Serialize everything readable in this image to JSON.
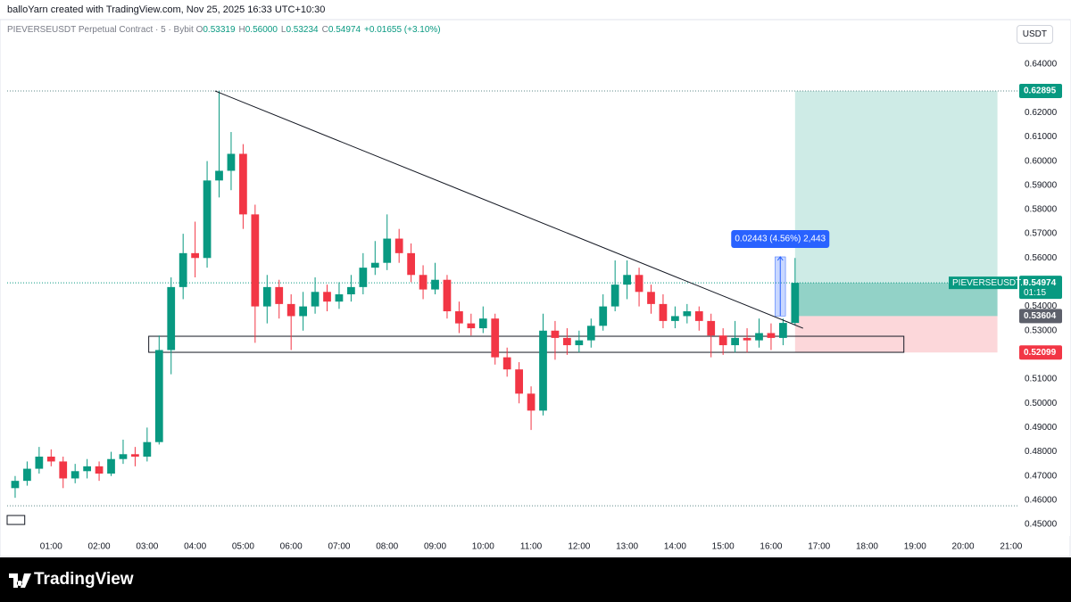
{
  "header": {
    "credit": "balloYarn created with TradingView.com, Nov 25, 2025 16:33 UTC+10:30",
    "symbol": "PIEVERSEUSDT Perpetual Contract · 5 · Bybit",
    "ohlc": [
      {
        "key": "O",
        "value": "0.53319"
      },
      {
        "key": "H",
        "value": "0.56000"
      },
      {
        "key": "L",
        "value": "0.53234"
      },
      {
        "key": "C",
        "value": "0.54974"
      }
    ],
    "change": "+0.01655 (+3.10%)",
    "currency": "USDT"
  },
  "footer": {
    "brand": "TradingView"
  },
  "chart_data": {
    "type": "candlestick",
    "up_color": "#089981",
    "down_color": "#f23645",
    "x": [
      "00:15",
      "00:30",
      "00:45",
      "01:00",
      "01:15",
      "01:30",
      "01:45",
      "02:00",
      "02:15",
      "02:30",
      "02:45",
      "03:00",
      "03:15",
      "03:30",
      "03:45",
      "04:00",
      "04:15",
      "04:30",
      "04:45",
      "05:00",
      "05:15",
      "05:30",
      "05:45",
      "06:00",
      "06:15",
      "06:30",
      "06:45",
      "07:00",
      "07:15",
      "07:30",
      "07:45",
      "08:00",
      "08:15",
      "08:30",
      "08:45",
      "09:00",
      "09:15",
      "09:30",
      "09:45",
      "10:00",
      "10:15",
      "10:30",
      "10:45",
      "11:00",
      "11:15",
      "11:30",
      "11:45",
      "12:00",
      "12:15",
      "12:30",
      "12:45",
      "13:00",
      "13:15",
      "13:30",
      "13:45",
      "14:00",
      "14:15",
      "14:30",
      "14:45",
      "15:00",
      "15:15",
      "15:30",
      "15:45",
      "16:00",
      "16:15",
      "16:30"
    ],
    "open": [
      0.465,
      0.468,
      0.473,
      0.478,
      0.476,
      0.469,
      0.472,
      0.474,
      0.471,
      0.477,
      0.479,
      0.478,
      0.484,
      0.522,
      0.548,
      0.562,
      0.56,
      0.592,
      0.596,
      0.603,
      0.578,
      0.54,
      0.548,
      0.541,
      0.536,
      0.54,
      0.546,
      0.542,
      0.545,
      0.548,
      0.556,
      0.558,
      0.568,
      0.562,
      0.553,
      0.547,
      0.551,
      0.538,
      0.533,
      0.531,
      0.535,
      0.519,
      0.514,
      0.504,
      0.497,
      0.53,
      0.527,
      0.524,
      0.526,
      0.532,
      0.54,
      0.549,
      0.553,
      0.546,
      0.541,
      0.534,
      0.536,
      0.538,
      0.534,
      0.528,
      0.524,
      0.527,
      0.526,
      0.529,
      0.527,
      0.53319
    ],
    "high": [
      0.47,
      0.476,
      0.482,
      0.481,
      0.478,
      0.475,
      0.477,
      0.476,
      0.48,
      0.485,
      0.482,
      0.49,
      0.528,
      0.552,
      0.57,
      0.575,
      0.6,
      0.62895,
      0.612,
      0.607,
      0.582,
      0.553,
      0.551,
      0.545,
      0.546,
      0.552,
      0.549,
      0.55,
      0.553,
      0.562,
      0.567,
      0.578,
      0.572,
      0.566,
      0.557,
      0.558,
      0.553,
      0.542,
      0.537,
      0.54,
      0.537,
      0.523,
      0.517,
      0.507,
      0.537,
      0.534,
      0.531,
      0.53,
      0.535,
      0.545,
      0.559,
      0.559,
      0.556,
      0.549,
      0.545,
      0.54,
      0.541,
      0.54,
      0.537,
      0.531,
      0.534,
      0.531,
      0.535,
      0.533,
      0.535,
      0.56
    ],
    "low": [
      0.461,
      0.466,
      0.471,
      0.474,
      0.465,
      0.467,
      0.469,
      0.468,
      0.47,
      0.475,
      0.474,
      0.476,
      0.483,
      0.512,
      0.543,
      0.552,
      0.556,
      0.585,
      0.588,
      0.572,
      0.525,
      0.533,
      0.535,
      0.522,
      0.53,
      0.537,
      0.538,
      0.539,
      0.542,
      0.545,
      0.553,
      0.555,
      0.558,
      0.55,
      0.543,
      0.545,
      0.535,
      0.529,
      0.528,
      0.529,
      0.516,
      0.511,
      0.5,
      0.489,
      0.495,
      0.518,
      0.52,
      0.521,
      0.523,
      0.53,
      0.538,
      0.543,
      0.54,
      0.537,
      0.531,
      0.531,
      0.533,
      0.53,
      0.519,
      0.52,
      0.521,
      0.521,
      0.523,
      0.522,
      0.524,
      0.53234
    ],
    "close": [
      0.468,
      0.473,
      0.478,
      0.476,
      0.469,
      0.472,
      0.474,
      0.471,
      0.477,
      0.479,
      0.478,
      0.484,
      0.522,
      0.548,
      0.562,
      0.56,
      0.592,
      0.596,
      0.603,
      0.578,
      0.54,
      0.548,
      0.541,
      0.536,
      0.54,
      0.546,
      0.542,
      0.545,
      0.548,
      0.556,
      0.558,
      0.568,
      0.562,
      0.553,
      0.547,
      0.551,
      0.538,
      0.533,
      0.531,
      0.535,
      0.519,
      0.514,
      0.504,
      0.497,
      0.53,
      0.527,
      0.524,
      0.526,
      0.532,
      0.54,
      0.549,
      0.553,
      0.546,
      0.541,
      0.534,
      0.536,
      0.538,
      0.534,
      0.528,
      0.524,
      0.527,
      0.526,
      0.529,
      0.527,
      0.53319,
      0.54974
    ],
    "xlim": [
      "00:05",
      "21:08"
    ],
    "xticks": [
      "01:00",
      "02:00",
      "03:00",
      "04:00",
      "05:00",
      "06:00",
      "07:00",
      "08:00",
      "09:00",
      "10:00",
      "11:00",
      "12:00",
      "13:00",
      "14:00",
      "15:00",
      "16:00",
      "17:00",
      "18:00",
      "19:00",
      "20:00",
      "21:00"
    ],
    "ylim": [
      0.4456,
      0.6584
    ],
    "yticks": [
      {
        "value": 0.45,
        "label": "0.45000"
      },
      {
        "value": 0.46,
        "label": "0.46000"
      },
      {
        "value": 0.47,
        "label": "0.47000"
      },
      {
        "value": 0.48,
        "label": "0.48000"
      },
      {
        "value": 0.49,
        "label": "0.49000"
      },
      {
        "value": 0.5,
        "label": "0.50000"
      },
      {
        "value": 0.51,
        "label": "0.51000"
      },
      {
        "value": 0.52,
        "label": "0.52000"
      },
      {
        "value": 0.53,
        "label": "0.53000"
      },
      {
        "value": 0.54,
        "label": "0.54000"
      },
      {
        "value": 0.55,
        "label": "0.55000"
      },
      {
        "value": 0.56,
        "label": "0.56000"
      },
      {
        "value": 0.57,
        "label": "0.57000"
      },
      {
        "value": 0.58,
        "label": "0.58000"
      },
      {
        "value": 0.59,
        "label": "0.59000"
      },
      {
        "value": 0.6,
        "label": "0.60000"
      },
      {
        "value": 0.61,
        "label": "0.61000"
      },
      {
        "value": 0.62,
        "label": "0.62000"
      },
      {
        "value": 0.63,
        "label": "0.63000"
      },
      {
        "value": 0.64,
        "label": "0.64000"
      }
    ],
    "grid": false,
    "drawings": {
      "hlines": [
        0.62895,
        0.54974,
        0.4577
      ],
      "trendline": {
        "from": [
          "04:25",
          0.62895
        ],
        "to": [
          "16:40",
          0.531
        ]
      },
      "rects": [
        {
          "x": [
            "03:02",
            "18:46"
          ],
          "y": [
            0.52106,
            0.52769
          ]
        },
        {
          "x": [
            "00:05",
            "00:27"
          ],
          "y": [
            0.45,
            0.4537
          ]
        }
      ],
      "position": {
        "x": [
          "16:30",
          "20:43"
        ],
        "target": {
          "value": 0.62895,
          "label": "0.62895"
        },
        "entry": {
          "value": 0.53604,
          "label": "0.53604"
        },
        "stop": {
          "value": 0.52099,
          "label": "0.52099"
        }
      },
      "measure": {
        "x": [
          "16:05",
          "16:18"
        ],
        "from": 0.53604,
        "to": 0.56047,
        "label": "0.02443 (4.56%) 2,443"
      }
    },
    "last_price": {
      "name": "PIEVERSEUSDT.P",
      "value": 0.54974,
      "label": "0.54974",
      "countdown": "01:15"
    }
  }
}
